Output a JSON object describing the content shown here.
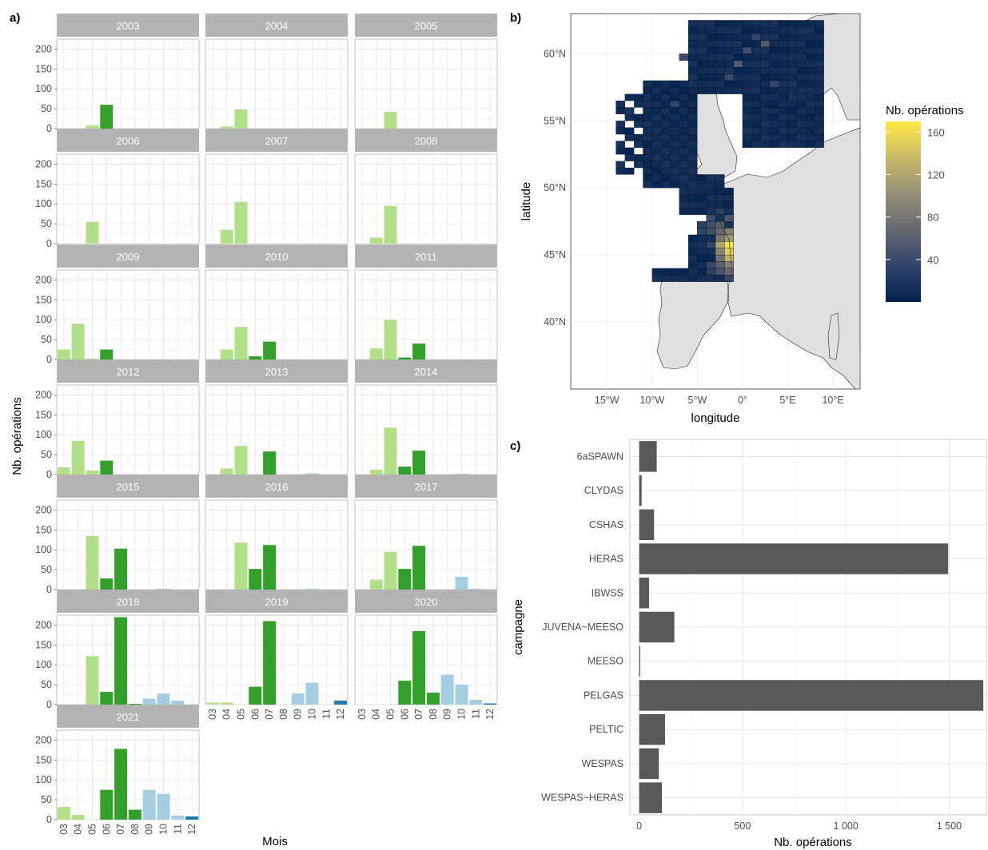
{
  "panels": {
    "a": "a)",
    "b": "b)",
    "c": "c)"
  },
  "colors": {
    "strip": "#b3b3b3",
    "grid": "#ebebeb",
    "bar_c": "#595959",
    "sea": "#ffffff",
    "land": "#e0e0e0",
    "month_colors": {
      "03": "#b2df8a",
      "04": "#b2df8a",
      "05": "#b2df8a",
      "06": "#33a02c",
      "07": "#33a02c",
      "08": "#33a02c",
      "09": "#a6cee3",
      "10": "#a6cee3",
      "11": "#a6cee3",
      "12": "#1f78b4"
    },
    "heat_scale": [
      "#00204d",
      "#31446b",
      "#666870",
      "#958f78",
      "#cbba69",
      "#ffea46"
    ]
  },
  "chart_data": [
    {
      "type": "bar",
      "panel": "a",
      "facet_var": "year",
      "categories": [
        "03",
        "04",
        "05",
        "06",
        "07",
        "08",
        "09",
        "10",
        "11",
        "12"
      ],
      "xlabel": "Mois",
      "ylabel": "Nb. opérations",
      "ylim": [
        0,
        225
      ],
      "yticks": [
        0,
        50,
        100,
        150,
        200
      ],
      "grid": true,
      "facets": [
        {
          "label": "2003",
          "values": [
            0,
            0,
            8,
            60,
            0,
            0,
            0,
            0,
            0,
            0
          ]
        },
        {
          "label": "2004",
          "values": [
            0,
            5,
            48,
            0,
            0,
            0,
            0,
            0,
            0,
            0
          ]
        },
        {
          "label": "2005",
          "values": [
            0,
            0,
            42,
            0,
            0,
            0,
            0,
            0,
            0,
            0
          ]
        },
        {
          "label": "2006",
          "values": [
            0,
            0,
            55,
            0,
            0,
            0,
            0,
            0,
            0,
            0
          ]
        },
        {
          "label": "2007",
          "values": [
            0,
            35,
            105,
            0,
            0,
            0,
            0,
            0,
            0,
            0
          ]
        },
        {
          "label": "2008",
          "values": [
            0,
            15,
            95,
            0,
            0,
            0,
            0,
            0,
            0,
            0
          ]
        },
        {
          "label": "2009",
          "values": [
            25,
            90,
            2,
            25,
            0,
            0,
            0,
            0,
            0,
            0
          ]
        },
        {
          "label": "2010",
          "values": [
            0,
            25,
            82,
            8,
            45,
            0,
            0,
            0,
            0,
            0
          ]
        },
        {
          "label": "2011",
          "values": [
            0,
            28,
            100,
            5,
            40,
            0,
            0,
            0,
            0,
            0
          ]
        },
        {
          "label": "2012",
          "values": [
            18,
            85,
            10,
            35,
            0,
            0,
            0,
            0,
            0,
            0
          ]
        },
        {
          "label": "2013",
          "values": [
            0,
            15,
            72,
            0,
            58,
            0,
            0,
            3,
            0,
            0
          ]
        },
        {
          "label": "2014",
          "values": [
            0,
            12,
            118,
            20,
            60,
            0,
            0,
            2,
            0,
            0
          ]
        },
        {
          "label": "2015",
          "values": [
            0,
            0,
            135,
            28,
            103,
            0,
            0,
            2,
            0,
            0
          ]
        },
        {
          "label": "2016",
          "values": [
            0,
            0,
            118,
            52,
            112,
            0,
            0,
            2,
            0,
            0
          ]
        },
        {
          "label": "2017",
          "values": [
            0,
            25,
            95,
            52,
            110,
            0,
            0,
            32,
            2,
            0
          ]
        },
        {
          "label": "2018",
          "values": [
            0,
            0,
            122,
            32,
            220,
            2,
            15,
            28,
            10,
            0
          ]
        },
        {
          "label": "2019",
          "values": [
            5,
            5,
            0,
            45,
            210,
            0,
            28,
            55,
            0,
            10
          ]
        },
        {
          "label": "2020",
          "values": [
            0,
            0,
            0,
            60,
            185,
            30,
            75,
            50,
            12,
            3
          ]
        },
        {
          "label": "2021",
          "values": [
            32,
            12,
            0,
            75,
            178,
            25,
            75,
            65,
            10,
            8
          ]
        }
      ]
    },
    {
      "type": "heatmap",
      "panel": "b",
      "title": "",
      "xlabel": "longitude",
      "ylabel": "latitude",
      "x_ticks": [
        "15°W",
        "10°W",
        "5°W",
        "0°",
        "5°E",
        "10°E"
      ],
      "x_tick_values": [
        -15,
        -10,
        -5,
        0,
        5,
        10
      ],
      "y_ticks": [
        "40°N",
        "45°N",
        "50°N",
        "55°N",
        "60°N"
      ],
      "y_tick_values": [
        40,
        45,
        50,
        55,
        60
      ],
      "xlim": [
        -19,
        13
      ],
      "ylim": [
        35,
        63
      ],
      "legend_title": "Nb. opérations",
      "legend_ticks": [
        40,
        80,
        120,
        160
      ],
      "legend_range": [
        0,
        170
      ],
      "legend_position": "right",
      "cell_size_deg": [
        1,
        0.5
      ],
      "cells": [
        [
          -3.5,
          47.25,
          45
        ],
        [
          -2.5,
          47.25,
          60
        ],
        [
          -4.5,
          47.25,
          30
        ],
        [
          -1.5,
          46.75,
          90
        ],
        [
          -2.5,
          46.75,
          70
        ],
        [
          -3.5,
          46.75,
          45
        ],
        [
          -1.5,
          46.25,
          110
        ],
        [
          -2.5,
          46.25,
          80
        ],
        [
          -1.5,
          45.75,
          165
        ],
        [
          -2.5,
          45.75,
          120
        ],
        [
          -1.5,
          45.25,
          150
        ],
        [
          -2.5,
          45.25,
          90
        ],
        [
          -1.5,
          44.75,
          130
        ],
        [
          -2.5,
          44.75,
          75
        ],
        [
          -1.5,
          44.25,
          90
        ],
        [
          -2.5,
          44.25,
          60
        ],
        [
          -3.5,
          44.25,
          40
        ],
        [
          -1.5,
          43.75,
          70
        ],
        [
          -2.5,
          43.75,
          50
        ],
        [
          -3.5,
          43.75,
          30
        ],
        [
          -1.5,
          43.25,
          40
        ],
        [
          -3.5,
          47.75,
          40
        ],
        [
          -4.5,
          46.75,
          35
        ],
        [
          -3.5,
          45.75,
          35
        ],
        [
          -1.5,
          47.75,
          50
        ],
        [
          -2.5,
          48.25,
          30
        ],
        [
          -0.5,
          59.25,
          55
        ],
        [
          0.5,
          60.25,
          45
        ],
        [
          2.5,
          60.75,
          55
        ],
        [
          -1.5,
          58.25,
          40
        ],
        [
          -6.5,
          59.75,
          40
        ],
        [
          1.5,
          61.25,
          35
        ],
        [
          -7.5,
          56.25,
          35
        ],
        [
          3.5,
          57.75,
          35
        ]
      ]
    },
    {
      "type": "bar",
      "panel": "c",
      "orientation": "horizontal",
      "categories": [
        "6aSPAWN",
        "CLYDAS",
        "CSHAS",
        "HERAS",
        "IBWSS",
        "JUVENA~MEESO",
        "MEESO",
        "PELGAS",
        "PELTIC",
        "WESPAS",
        "WESPAS~HERAS"
      ],
      "values": [
        85,
        12,
        72,
        1495,
        48,
        170,
        5,
        1665,
        125,
        95,
        110
      ],
      "xlabel": "Nb. opérations",
      "ylabel": "campagne",
      "xlim": [
        -45,
        1680
      ],
      "xticks": [
        0,
        500,
        1000,
        1500
      ],
      "xtick_labels": [
        "0",
        "500",
        "1 000",
        "1 500"
      ],
      "grid": true
    }
  ]
}
